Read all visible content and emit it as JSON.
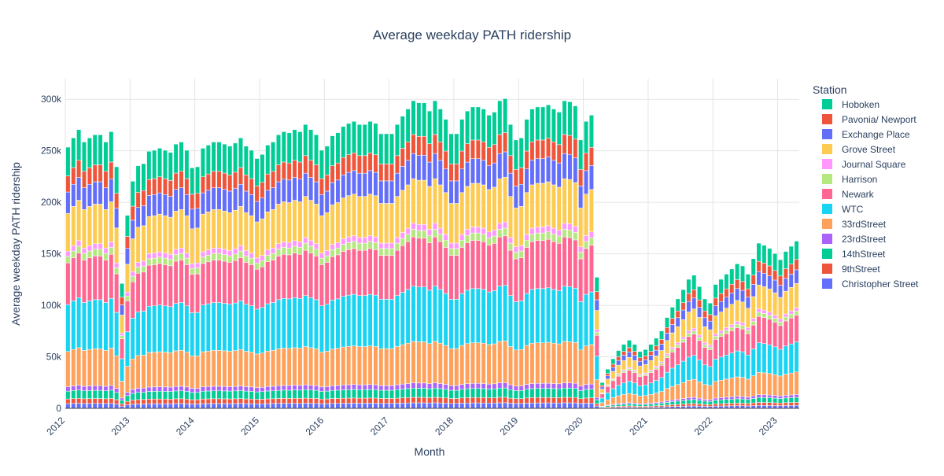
{
  "chart_data": {
    "type": "bar",
    "barmode": "stack",
    "title": "Average weekday PATH ridership",
    "xlabel": "Month",
    "ylabel": "Average weekday PATH ridership",
    "ylim": [
      0,
      320000
    ],
    "y_ticks": [
      0,
      50000,
      100000,
      150000,
      200000,
      250000,
      300000
    ],
    "y_tick_labels": [
      "0",
      "50k",
      "100k",
      "150k",
      "200k",
      "250k",
      "300k"
    ],
    "x_start": "2012-01",
    "x_end": "2023-04",
    "x_ticks": [
      "2012",
      "2013",
      "2014",
      "2015",
      "2016",
      "2017",
      "2018",
      "2019",
      "2020",
      "2021",
      "2022",
      "2023"
    ],
    "grid": true,
    "legend_title": "Station",
    "legend_placement": "right",
    "stack_order": [
      "Christopher Street",
      "9thStreet",
      "14thStreet",
      "23rdStreet",
      "33rdStreet",
      "WTC",
      "Newark",
      "Harrison",
      "Journal Square",
      "Grove Street",
      "Exchange Place",
      "Pavonia/ Newport",
      "Hoboken"
    ],
    "colors": {
      "Hoboken": "#00cc96",
      "Pavonia/ Newport": "#ef553b",
      "Exchange Place": "#636efa",
      "Grove Street": "#fecb52",
      "Journal Square": "#ff97ff",
      "Harrison": "#b6e880",
      "Newark": "#ff6692",
      "WTC": "#19d3f3",
      "33rdStreet": "#ffa15a",
      "23rdStreet": "#ab63fa",
      "14thStreet": "#00cc96",
      "9thStreet": "#ef553b",
      "Christopher Street": "#636efa"
    },
    "legend_order": [
      "Hoboken",
      "Pavonia/ Newport",
      "Exchange Place",
      "Grove Street",
      "Journal Square",
      "Harrison",
      "Newark",
      "WTC",
      "33rdStreet",
      "23rdStreet",
      "14thStreet",
      "9thStreet",
      "Christopher Street"
    ],
    "months": [
      "2012-01",
      "2012-02",
      "2012-03",
      "2012-04",
      "2012-05",
      "2012-06",
      "2012-07",
      "2012-08",
      "2012-09",
      "2012-10",
      "2012-11",
      "2012-12",
      "2013-01",
      "2013-02",
      "2013-03",
      "2013-04",
      "2013-05",
      "2013-06",
      "2013-07",
      "2013-08",
      "2013-09",
      "2013-10",
      "2013-11",
      "2013-12",
      "2014-01",
      "2014-02",
      "2014-03",
      "2014-04",
      "2014-05",
      "2014-06",
      "2014-07",
      "2014-08",
      "2014-09",
      "2014-10",
      "2014-11",
      "2014-12",
      "2015-01",
      "2015-02",
      "2015-03",
      "2015-04",
      "2015-05",
      "2015-06",
      "2015-07",
      "2015-08",
      "2015-09",
      "2015-10",
      "2015-11",
      "2015-12",
      "2016-01",
      "2016-02",
      "2016-03",
      "2016-04",
      "2016-05",
      "2016-06",
      "2016-07",
      "2016-08",
      "2016-09",
      "2016-10",
      "2016-11",
      "2016-12",
      "2017-01",
      "2017-02",
      "2017-03",
      "2017-04",
      "2017-05",
      "2017-06",
      "2017-07",
      "2017-08",
      "2017-09",
      "2017-10",
      "2017-11",
      "2017-12",
      "2018-01",
      "2018-02",
      "2018-03",
      "2018-04",
      "2018-05",
      "2018-06",
      "2018-07",
      "2018-08",
      "2018-09",
      "2018-10",
      "2018-11",
      "2018-12",
      "2019-01",
      "2019-02",
      "2019-03",
      "2019-04",
      "2019-05",
      "2019-06",
      "2019-07",
      "2019-08",
      "2019-09",
      "2019-10",
      "2019-11",
      "2019-12",
      "2020-01",
      "2020-02",
      "2020-03",
      "2020-04",
      "2020-05",
      "2020-06",
      "2020-07",
      "2020-08",
      "2020-09",
      "2020-10",
      "2020-11",
      "2020-12",
      "2021-01",
      "2021-02",
      "2021-03",
      "2021-04",
      "2021-05",
      "2021-06",
      "2021-07",
      "2021-08",
      "2021-09",
      "2021-10",
      "2021-11",
      "2021-12",
      "2022-01",
      "2022-02",
      "2022-03",
      "2022-04",
      "2022-05",
      "2022-06",
      "2022-07",
      "2022-08",
      "2022-09",
      "2022-10",
      "2022-11",
      "2022-12",
      "2023-01",
      "2023-02",
      "2023-03",
      "2023-04"
    ],
    "totals": [
      253000,
      262000,
      270000,
      258000,
      262000,
      265000,
      265000,
      258000,
      268000,
      234000,
      121000,
      187000,
      220000,
      235000,
      237000,
      249000,
      250000,
      252000,
      250000,
      248000,
      256000,
      258000,
      250000,
      233000,
      234000,
      252000,
      255000,
      258000,
      258000,
      256000,
      254000,
      257000,
      262000,
      254000,
      250000,
      242000,
      246000,
      255000,
      258000,
      265000,
      268000,
      267000,
      270000,
      268000,
      275000,
      270000,
      265000,
      250000,
      254000,
      264000,
      267000,
      273000,
      276000,
      278000,
      275000,
      275000,
      278000,
      276000,
      266000,
      266000,
      266000,
      275000,
      283000,
      290000,
      298000,
      296000,
      296000,
      288000,
      298000,
      290000,
      280000,
      266000,
      266000,
      280000,
      288000,
      292000,
      292000,
      290000,
      284000,
      287000,
      298000,
      300000,
      275000,
      260000,
      262000,
      280000,
      290000,
      292000,
      292000,
      294000,
      290000,
      287000,
      298000,
      297000,
      293000,
      260000,
      278000,
      284000,
      127000,
      25000,
      38000,
      48000,
      56000,
      62000,
      66000,
      62000,
      55000,
      57000,
      62000,
      68000,
      75000,
      88000,
      98000,
      106000,
      115000,
      125000,
      129000,
      118000,
      106000,
      102000,
      120000,
      125000,
      130000,
      135000,
      140000,
      138000,
      130000,
      145000,
      160000,
      158000,
      155000,
      150000,
      144000,
      152000,
      157000,
      162000
    ],
    "shares": [
      0.018,
      0.018,
      0.03,
      0.017,
      0.135,
      0.18,
      0.16,
      0.025,
      0.02,
      0.145,
      0.082,
      0.062,
      0.11
    ]
  }
}
